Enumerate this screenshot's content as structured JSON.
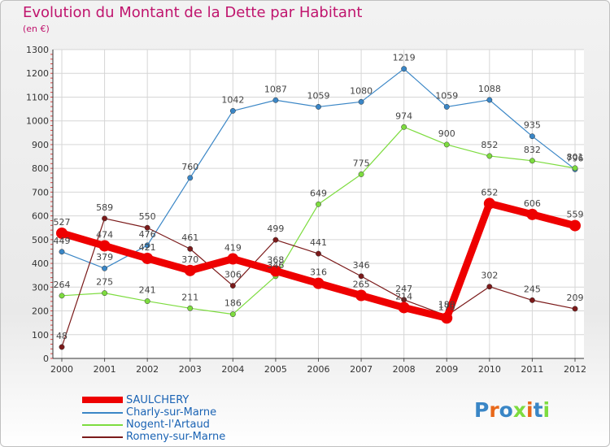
{
  "header": {
    "title": "Evolution du Montant de la Dette par Habitant",
    "subtitle": "(en €)"
  },
  "logo": {
    "text": "Proxiti"
  },
  "chart_data": {
    "type": "line",
    "title": "Evolution du Montant de la Dette par Habitant",
    "subtitle": "(en €)",
    "x": [
      "2000",
      "2001",
      "2002",
      "2003",
      "2004",
      "2005",
      "2006",
      "2007",
      "2008",
      "2009",
      "2010",
      "2011",
      "2012"
    ],
    "ylim": [
      0,
      1300
    ],
    "yticks": [
      0,
      100,
      200,
      300,
      400,
      500,
      600,
      700,
      800,
      900,
      1000,
      1100,
      1200,
      1300
    ],
    "grid": true,
    "legend_position": "bottom-left",
    "series": [
      {
        "name": "SAULCHERY",
        "color": "#ee0000",
        "thick": true,
        "values": [
          527,
          474,
          421,
          370,
          419,
          368,
          316,
          265,
          214,
          170,
          652,
          606,
          559
        ],
        "labels": [
          "527",
          "474",
          "421",
          "370",
          "419",
          "368",
          "316",
          "265",
          "214",
          "170",
          "652",
          "606",
          "559"
        ]
      },
      {
        "name": "Charly-sur-Marne",
        "color": "#3a86c6",
        "thick": false,
        "values": [
          449,
          379,
          476,
          760,
          1042,
          1087,
          1059,
          1080,
          1219,
          1059,
          1088,
          935,
          796
        ],
        "labels": [
          "449",
          "379",
          "476",
          "760",
          "1042",
          "1087",
          "1059",
          "1080",
          "1219",
          "1059",
          "1088",
          "935",
          "796"
        ]
      },
      {
        "name": "Nogent-l'Artaud",
        "color": "#7ddc3f",
        "thick": false,
        "values": [
          264,
          275,
          241,
          211,
          186,
          346,
          649,
          775,
          974,
          900,
          852,
          832,
          801
        ],
        "labels": [
          "264",
          "275",
          "241",
          "211",
          "186",
          "346",
          "649",
          "775",
          "974",
          "900",
          "852",
          "832",
          "801"
        ]
      },
      {
        "name": "Romeny-sur-Marne",
        "color": "#7b1a1a",
        "thick": false,
        "values": [
          48,
          589,
          550,
          461,
          306,
          499,
          441,
          346,
          247,
          180,
          302,
          245,
          209
        ],
        "labels": [
          "48",
          "589",
          "550",
          "461",
          "306",
          "499",
          "441",
          "346",
          "247",
          "180",
          "302",
          "245",
          "209"
        ]
      }
    ]
  }
}
